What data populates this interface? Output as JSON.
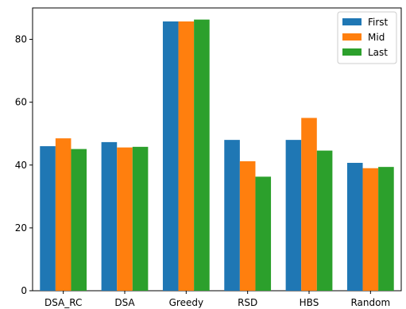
{
  "chart_data": {
    "type": "bar",
    "categories": [
      "DSA_RC",
      "DSA",
      "Greedy",
      "RSD",
      "HBS",
      "Random"
    ],
    "series": [
      {
        "name": "First",
        "color": "#1f77b4",
        "values": [
          46.0,
          47.3,
          85.7,
          48.0,
          48.0,
          40.7
        ]
      },
      {
        "name": "Mid",
        "color": "#ff7f0e",
        "values": [
          48.5,
          45.6,
          85.7,
          41.2,
          55.0,
          39.0
        ]
      },
      {
        "name": "Last",
        "color": "#2ca02c",
        "values": [
          45.1,
          45.8,
          86.3,
          36.3,
          44.6,
          39.4
        ]
      }
    ],
    "title": "",
    "xlabel": "",
    "ylabel": "",
    "ylim": [
      0,
      90
    ],
    "yticks": [
      0,
      20,
      40,
      60,
      80
    ],
    "grid": false,
    "legend_position": "top-right"
  }
}
